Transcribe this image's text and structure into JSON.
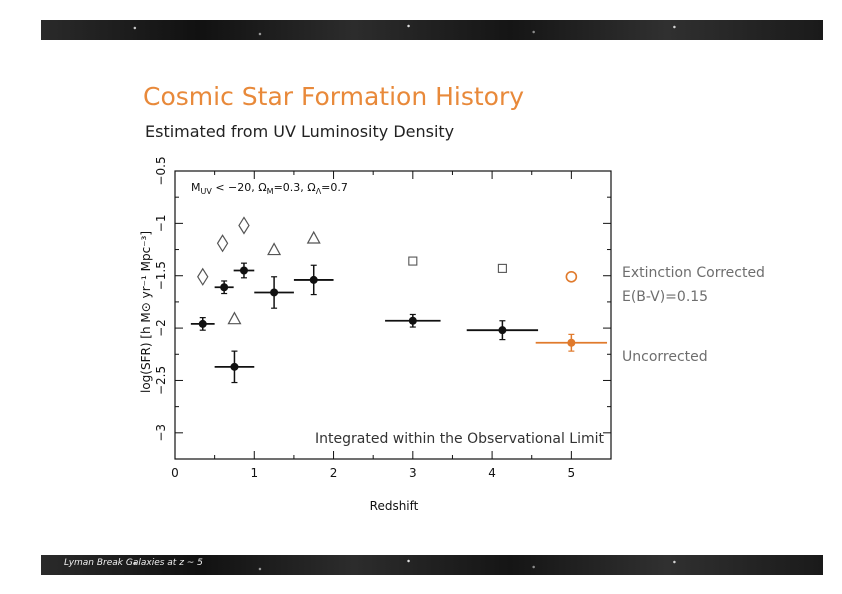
{
  "slide": {
    "title": "Cosmic Star Formation History",
    "subtitle": "Estimated from UV Luminosity Density",
    "footer": "Lyman Break Galaxies at z ~ 5"
  },
  "colors": {
    "title": "#e8893a",
    "highlight": "#e07a2c",
    "data": "#111111",
    "open_markers": "#555555",
    "side_text": "#6e6e6e"
  },
  "labels": {
    "extinction_line1": "Extinction Corrected",
    "extinction_line2": "E(B-V)=0.15",
    "uncorrected": "Uncorrected"
  },
  "chart_data": {
    "type": "scatter",
    "xlabel": "Redshift",
    "ylabel": "log(SFR) [h M⊙ yr⁻¹ Mpc⁻³]",
    "xlim": [
      0,
      5.5
    ],
    "ylim": [
      -3.25,
      -0.5
    ],
    "x_ticks": [
      0,
      1,
      2,
      3,
      4,
      5
    ],
    "y_ticks": [
      -3,
      -2.5,
      -2,
      -1.5,
      -1,
      -0.5
    ],
    "x_tick_labels": [
      "0",
      "1",
      "2",
      "3",
      "4",
      "5"
    ],
    "y_tick_labels": [
      "−3",
      "−2.5",
      "−2",
      "−1.5",
      "−1",
      "−0.5"
    ],
    "annotation_top": "M_UV < −20, Ω_M=0.3, Ω_Λ=0.7",
    "annotation_bottom": "Integrated within the Observational Limit",
    "series": [
      {
        "marker": "filled-circle",
        "points": [
          {
            "x": 0.35,
            "y": -1.96,
            "xerr": 0.15,
            "yerr": 0.06
          },
          {
            "x": 0.62,
            "y": -1.61,
            "xerr": 0.12,
            "yerr": 0.06
          },
          {
            "x": 0.75,
            "y": -2.37,
            "xerr": 0.25,
            "yerr": 0.15
          },
          {
            "x": 0.87,
            "y": -1.45,
            "xerr": 0.13,
            "yerr": 0.07
          },
          {
            "x": 1.25,
            "y": -1.66,
            "xerr": 0.25,
            "yerr": 0.15
          },
          {
            "x": 1.75,
            "y": -1.54,
            "xerr": 0.25,
            "yerr": 0.14
          },
          {
            "x": 3.0,
            "y": -1.93,
            "xerr": 0.35,
            "yerr": 0.06
          },
          {
            "x": 4.13,
            "y": -2.02,
            "xerr": 0.45,
            "yerr": 0.09
          }
        ]
      },
      {
        "marker": "filled-circle-highlight",
        "points": [
          {
            "x": 5.0,
            "y": -2.14,
            "xerr": 0.45,
            "yerr": 0.08
          }
        ]
      },
      {
        "marker": "open-diamond",
        "points": [
          {
            "x": 0.35,
            "y": -1.51
          },
          {
            "x": 0.6,
            "y": -1.19
          },
          {
            "x": 0.87,
            "y": -1.02
          }
        ]
      },
      {
        "marker": "open-triangle",
        "points": [
          {
            "x": 0.75,
            "y": -1.91
          },
          {
            "x": 1.25,
            "y": -1.25
          },
          {
            "x": 1.75,
            "y": -1.14
          }
        ]
      },
      {
        "marker": "open-square",
        "points": [
          {
            "x": 3.0,
            "y": -1.36
          },
          {
            "x": 4.13,
            "y": -1.43
          }
        ]
      },
      {
        "marker": "open-circle-highlight",
        "points": [
          {
            "x": 5.0,
            "y": -1.51
          }
        ]
      }
    ]
  }
}
